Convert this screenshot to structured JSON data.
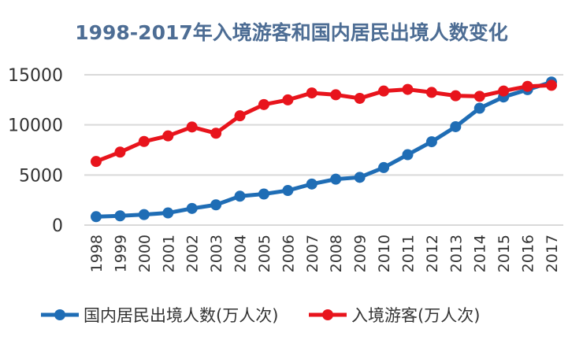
{
  "chart_data": {
    "type": "line",
    "title": "1998-2017年入境游客和国内居民出境人数变化",
    "xlabel": "",
    "ylabel": "",
    "ylim": [
      0,
      15000
    ],
    "yticks": [
      "0",
      "5000",
      "10000",
      "15000"
    ],
    "grid": true,
    "legend_position": "bottom",
    "categories": [
      "1998",
      "1999",
      "2000",
      "2001",
      "2002",
      "2003",
      "2004",
      "2005",
      "2006",
      "2007",
      "2008",
      "2009",
      "2010",
      "2011",
      "2012",
      "2013",
      "2014",
      "2015",
      "2016",
      "2017"
    ],
    "series": [
      {
        "name": "国内居民出境人数(万人次)",
        "color": "#1f6db5",
        "values": [
          843,
          923,
          1047,
          1213,
          1660,
          2022,
          2885,
          3103,
          3452,
          4095,
          4584,
          4766,
          5739,
          7025,
          8318,
          9819,
          11659,
          12786,
          13513,
          14273
        ]
      },
      {
        "name": "入境游客(万人次)",
        "color": "#e8141c",
        "values": [
          6348,
          7280,
          8344,
          8901,
          9791,
          9166,
          10904,
          12029,
          12494,
          13187,
          13003,
          12648,
          13376,
          13542,
          13241,
          12908,
          12850,
          13382,
          13844,
          13948
        ]
      }
    ]
  }
}
